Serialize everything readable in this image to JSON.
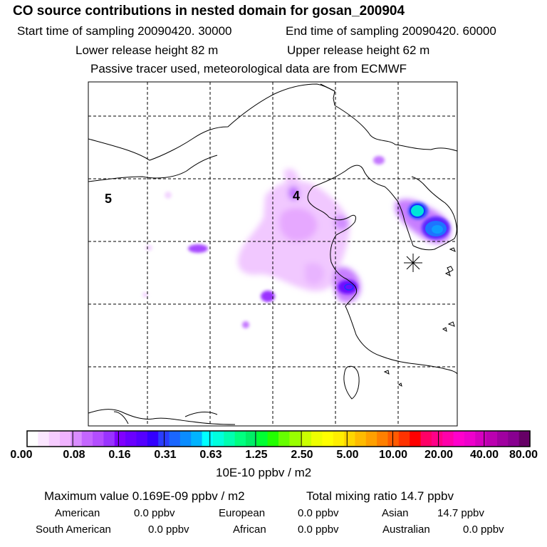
{
  "header": {
    "title": "CO  source contributions in nested domain for gosan_200904",
    "start_label": "Start time of sampling 20090420. 30000",
    "end_label": "End time of sampling 20090420. 60000",
    "lower_label": "Lower release height   82 m",
    "upper_label": "Upper release height   62 m",
    "note": "Passive tracer used, meteorological data are from ECMWF"
  },
  "map": {
    "region_labels": [
      "5",
      "4"
    ],
    "receptor_symbol": "Gosan receptor (star marker)"
  },
  "colorbar": {
    "tick_labels": [
      "0.00",
      "0.08",
      "0.16",
      "0.31",
      "0.63",
      "1.25",
      "2.50",
      "5.00",
      "10.00",
      "20.00",
      "40.00",
      "80.00"
    ],
    "unit_label": "10E-10 ppbv / m2",
    "colors": [
      "#ffffff",
      "#fbe6ff",
      "#f6ccff",
      "#f0b3ff",
      "#d98cff",
      "#c466ff",
      "#b34dff",
      "#9933ff",
      "#8000ff",
      "#6a00ff",
      "#5500ff",
      "#3300ff",
      "#2a3dff",
      "#1a66ff",
      "#0a8cff",
      "#00b3ff",
      "#00ffff",
      "#00ffdd",
      "#00ffb0",
      "#00ff80",
      "#00ee66",
      "#00ff33",
      "#22ff00",
      "#66ff00",
      "#99ff00",
      "#ccff00",
      "#eeff00",
      "#ffff00",
      "#ffee00",
      "#ffd600",
      "#ffbb00",
      "#ffa000",
      "#ff8000",
      "#ff5a00",
      "#ff3300",
      "#ff0000",
      "#ff0066",
      "#ff0088",
      "#ff00aa",
      "#ff00cc",
      "#ee00cc",
      "#d600c0",
      "#bb00b0",
      "#a000a0",
      "#880090",
      "#660066"
    ]
  },
  "footer": {
    "max_label": "Maximum value  0.169E-09 ppbv / m2",
    "total_label": "Total mixing ratio       14.7 ppbv",
    "american_label": "American",
    "american_value": "0.0 ppbv",
    "european_label": "European",
    "european_value": "0.0 ppbv",
    "asian_label": "Asian",
    "asian_value": "14.7 ppbv",
    "south_american_label": "South American",
    "south_american_value": "0.0 ppbv",
    "african_label": "African",
    "african_value": "0.0 ppbv",
    "australian_label": "Australian",
    "australian_value": "0.0 ppbv"
  }
}
